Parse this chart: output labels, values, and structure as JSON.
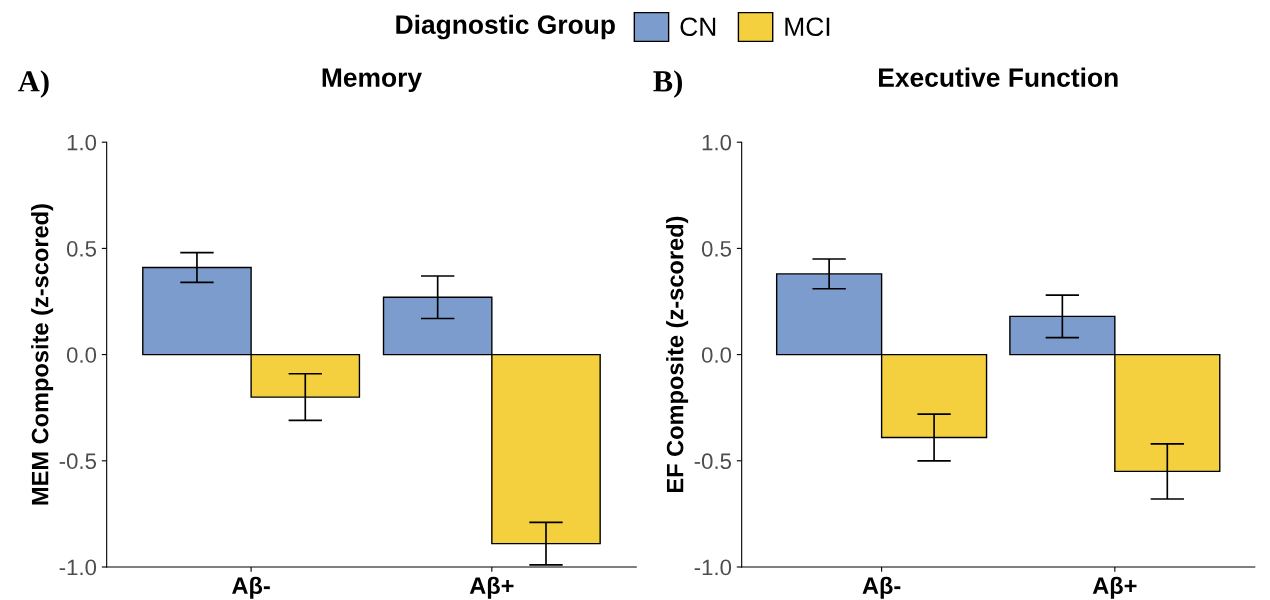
{
  "chart_data": [
    {
      "type": "bar",
      "title": "Memory",
      "ylabel": "MEM Composite (z-scored)",
      "annotations": [
        "A)"
      ],
      "legend_title": "Diagnostic Group",
      "legend": "top",
      "grid": false,
      "categories": [
        "Aβ-",
        "Aβ+"
      ],
      "ylim": [
        -1.0,
        1.0
      ],
      "yticks": [
        {
          "value": -1.0,
          "label": "-1.0"
        },
        {
          "value": -0.5,
          "label": "-0.5"
        },
        {
          "value": 0.0,
          "label": "0.0"
        },
        {
          "value": 0.5,
          "label": "0.5"
        },
        {
          "value": 1.0,
          "label": "1.0"
        }
      ],
      "series": [
        {
          "name": "CN",
          "color": "#7b9ccc",
          "values": [
            0.41,
            0.27
          ],
          "errors": [
            0.07,
            0.1
          ]
        },
        {
          "name": "MCI",
          "color": "#f4d03f",
          "values": [
            -0.2,
            -0.89
          ],
          "errors": [
            0.11,
            0.1
          ]
        }
      ]
    },
    {
      "type": "bar",
      "title": "Executive Function",
      "ylabel": "EF Composite (z-scored)",
      "annotations": [
        "B)"
      ],
      "legend": "top",
      "grid": false,
      "categories": [
        "Aβ-",
        "Aβ+"
      ],
      "ylim": [
        -1.0,
        1.0
      ],
      "yticks": [
        {
          "value": -1.0,
          "label": "-1.0"
        },
        {
          "value": -0.5,
          "label": "-0.5"
        },
        {
          "value": 0.0,
          "label": "0.0"
        },
        {
          "value": 0.5,
          "label": "0.5"
        },
        {
          "value": 1.0,
          "label": "1.0"
        }
      ],
      "series": [
        {
          "name": "CN",
          "color": "#7b9ccc",
          "values": [
            0.38,
            0.18
          ],
          "errors": [
            0.07,
            0.1
          ]
        },
        {
          "name": "MCI",
          "color": "#f4d03f",
          "values": [
            -0.39,
            -0.55
          ],
          "errors": [
            0.11,
            0.13
          ]
        }
      ]
    }
  ]
}
